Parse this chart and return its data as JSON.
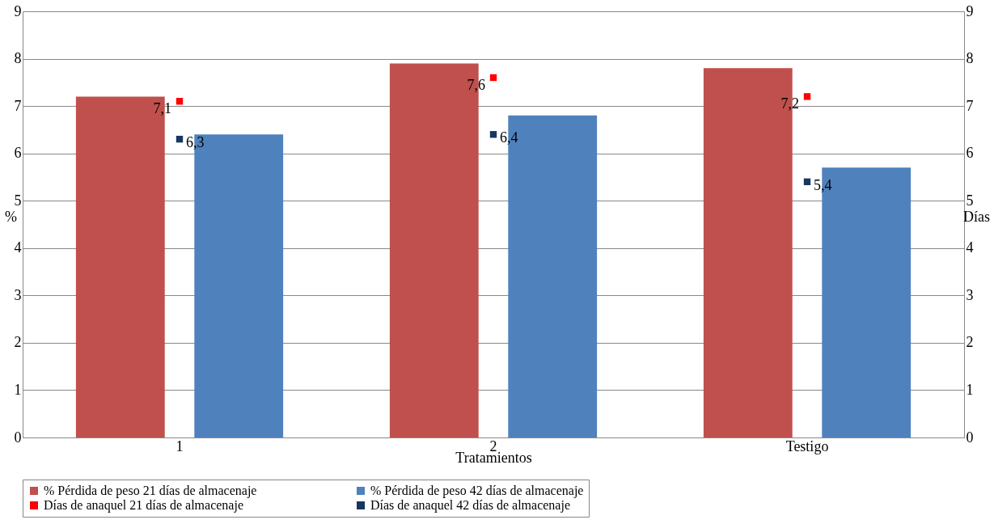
{
  "chart_data": {
    "type": "bar",
    "xlabel": "Tratamientos",
    "ylabel": "%",
    "y2label": "Días",
    "categories": [
      "1",
      "2",
      "Testigo"
    ],
    "series": [
      {
        "name": "% Pérdida de peso 21 días de almacenaje",
        "color": "#c0504d",
        "values": [
          7.2,
          7.9,
          7.8
        ]
      },
      {
        "name": "% Pérdida de peso 42 días de almacenaje",
        "color": "#4f81bd",
        "values": [
          6.4,
          6.8,
          5.7
        ]
      },
      {
        "name": "Días de anaquel 21 días de almacenaje",
        "type": "scatter",
        "axis": "y2",
        "color": "#ff0000",
        "values": [
          7.1,
          7.6,
          7.2
        ],
        "value_labels": [
          "7,1",
          "7,6",
          "7,2"
        ]
      },
      {
        "name": "Días de anaquel 42 días de almacenaje",
        "type": "scatter",
        "axis": "y2",
        "color": "#17375e",
        "values": [
          6.3,
          6.4,
          5.4
        ],
        "value_labels": [
          "6,3",
          "6,4",
          "5,4"
        ]
      }
    ],
    "ylim": [
      0,
      9
    ],
    "yticks": [
      0,
      1,
      2,
      3,
      4,
      5,
      6,
      7,
      8,
      9
    ],
    "y2lim": [
      0,
      9
    ],
    "y2ticks": [
      0,
      1,
      2,
      3,
      4,
      5,
      6,
      7,
      8,
      9
    ],
    "grid": "y",
    "legend": "bottom",
    "marker": "square"
  }
}
